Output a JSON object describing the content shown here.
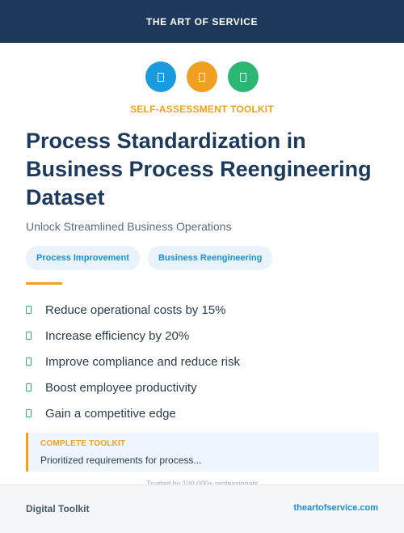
{
  "header": {
    "brand": "THE ART OF SERVICE"
  },
  "icons": [
    {
      "name": "clipboard-icon",
      "color": "#1a9be0"
    },
    {
      "name": "chart-icon",
      "color": "#f0a020"
    },
    {
      "name": "checklist-icon",
      "color": "#2bb673"
    }
  ],
  "kicker": "SELF-ASSESSMENT TOOLKIT",
  "title": "Process Standardization in Business Process Reengineering Dataset",
  "subtitle": "Unlock Streamlined Business Operations",
  "tags": [
    "Process Improvement",
    "Business Reengineering"
  ],
  "benefits": [
    "Reduce operational costs by 15%",
    "Increase efficiency by 20%",
    "Improve compliance and reduce risk",
    "Boost employee productivity",
    "Gain a competitive edge"
  ],
  "callout": {
    "label": "COMPLETE TOOLKIT",
    "text": "Prioritized requirements for process..."
  },
  "trusted": "Trusted by 100,000+ professionals",
  "footer": {
    "left": "Digital Toolkit",
    "right": "theartofservice.com"
  },
  "colors": {
    "navy": "#1d3a5c",
    "accent_orange": "#f0a020",
    "accent_blue": "#1a8fd6",
    "accent_green": "#2bb673"
  }
}
